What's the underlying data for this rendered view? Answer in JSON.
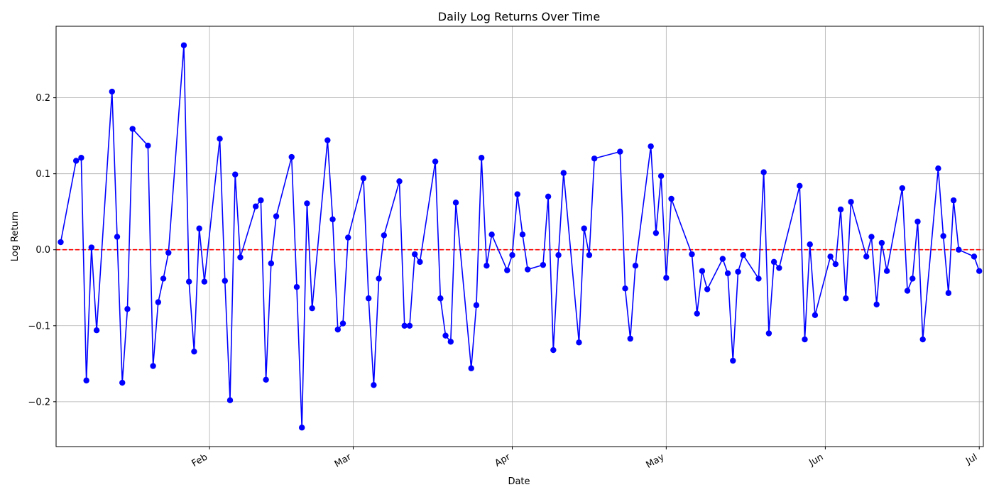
{
  "chart_data": {
    "type": "line",
    "title": "Daily Log Returns Over Time",
    "xlabel": "Date",
    "ylabel": "Log Return",
    "x": [
      3,
      6,
      7,
      8,
      9,
      10,
      13,
      14,
      15,
      16,
      17,
      20,
      21,
      22,
      23,
      24,
      27,
      28,
      29,
      30,
      31,
      34,
      35,
      36,
      37,
      38,
      41,
      42,
      43,
      44,
      45,
      48,
      49,
      50,
      51,
      52,
      55,
      56,
      57,
      58,
      59,
      62,
      63,
      64,
      65,
      66,
      69,
      70,
      71,
      72,
      73,
      76,
      77,
      78,
      79,
      80,
      83,
      84,
      85,
      86,
      87,
      90,
      91,
      92,
      93,
      94,
      97,
      98,
      99,
      100,
      101,
      104,
      105,
      106,
      107,
      112,
      113,
      114,
      115,
      118,
      119,
      120,
      121,
      122,
      126,
      127,
      128,
      129,
      132,
      133,
      134,
      135,
      136,
      139,
      140,
      141,
      142,
      143,
      147,
      148,
      149,
      150,
      153,
      154,
      155,
      156,
      157,
      160,
      161,
      162,
      163,
      164,
      167,
      168,
      169,
      170,
      171,
      174,
      175,
      176,
      177,
      178,
      181,
      182
    ],
    "values": [
      0.01,
      0.117,
      0.121,
      -0.172,
      0.003,
      -0.106,
      0.208,
      0.017,
      -0.175,
      -0.078,
      0.159,
      0.137,
      -0.153,
      -0.069,
      -0.038,
      -0.004,
      0.269,
      -0.042,
      -0.134,
      0.028,
      -0.042,
      0.146,
      -0.041,
      -0.198,
      0.099,
      -0.01,
      0.057,
      0.065,
      -0.171,
      -0.018,
      0.044,
      0.122,
      -0.049,
      -0.234,
      0.061,
      -0.077,
      0.144,
      0.04,
      -0.105,
      -0.097,
      0.016,
      0.094,
      -0.064,
      -0.178,
      -0.038,
      0.019,
      0.09,
      -0.1,
      -0.1,
      -0.006,
      -0.016,
      0.116,
      -0.064,
      -0.113,
      -0.121,
      0.062,
      -0.156,
      -0.073,
      0.121,
      -0.021,
      0.02,
      -0.027,
      -0.007,
      0.073,
      0.02,
      -0.026,
      -0.02,
      0.07,
      -0.132,
      -0.007,
      0.101,
      -0.122,
      0.028,
      -0.007,
      0.12,
      0.129,
      -0.051,
      -0.117,
      -0.021,
      0.136,
      0.022,
      0.097,
      -0.037,
      0.067,
      -0.006,
      -0.084,
      -0.028,
      -0.052,
      -0.012,
      -0.031,
      -0.146,
      -0.029,
      -0.007,
      -0.038,
      0.102,
      -0.11,
      -0.016,
      -0.024,
      0.084,
      -0.118,
      0.007,
      -0.086,
      -0.009,
      -0.019,
      0.053,
      -0.064,
      0.063,
      -0.009,
      0.017,
      -0.072,
      0.009,
      -0.028,
      0.081,
      -0.054,
      -0.038,
      0.037,
      -0.118,
      0.107,
      0.018,
      -0.057,
      0.065,
      0.0,
      -0.009,
      -0.028
    ],
    "color": "#0000ff",
    "hline": {
      "value": 0,
      "color": "#ff0000"
    },
    "xlim": [
      2.1,
      182.8
    ],
    "xticks": [
      {
        "value": 32,
        "label": "Feb"
      },
      {
        "value": 60,
        "label": "Mar"
      },
      {
        "value": 91,
        "label": "Apr"
      },
      {
        "value": 121,
        "label": "May"
      },
      {
        "value": 152,
        "label": "Jun"
      },
      {
        "value": 182,
        "label": "Jul"
      }
    ],
    "ylim": [
      -0.259,
      0.294
    ],
    "yticks": [
      {
        "value": -0.2,
        "label": "−0.2"
      },
      {
        "value": -0.1,
        "label": "−0.1"
      },
      {
        "value": 0,
        "label": "0.0"
      },
      0.1,
      0.2
    ],
    "grid": true
  }
}
